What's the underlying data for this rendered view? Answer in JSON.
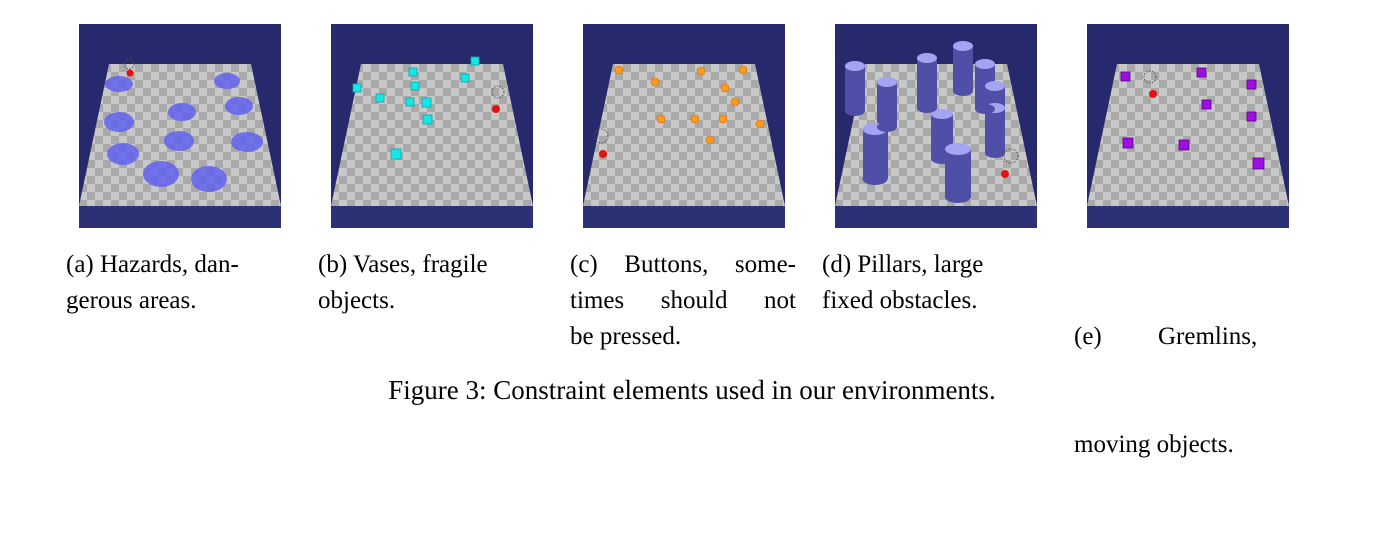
{
  "figure": {
    "caption": "Figure 3: Constraint elements used in our environments."
  },
  "panels": [
    {
      "id": "a",
      "caption_lines": [
        "(a) Hazards, dan-",
        "gerous areas."
      ],
      "element": "hazards",
      "element_color": "#5c5cf0"
    },
    {
      "id": "b",
      "caption_lines": [
        "(b) Vases, fragile",
        "objects."
      ],
      "element": "vases",
      "element_color": "#17e6e6"
    },
    {
      "id": "c",
      "caption_lines": [
        "(c) Buttons, some-",
        "times should not",
        "be pressed."
      ],
      "element": "buttons",
      "element_color": "#ff9a1f"
    },
    {
      "id": "d",
      "caption_lines": [
        "(d) Pillars, large",
        "fixed obstacles."
      ],
      "element": "pillars",
      "element_color": "#4f4fa8"
    },
    {
      "id": "e",
      "caption_lines": [
        "(e)         Gremlins,",
        "moving objects."
      ],
      "element": "gremlins",
      "element_color": "#9b10e0"
    }
  ],
  "colors": {
    "sky": "#262a6c",
    "floor_light": "#c9c9c9",
    "floor_dark": "#a8a8a8",
    "agent": "#e31212"
  }
}
